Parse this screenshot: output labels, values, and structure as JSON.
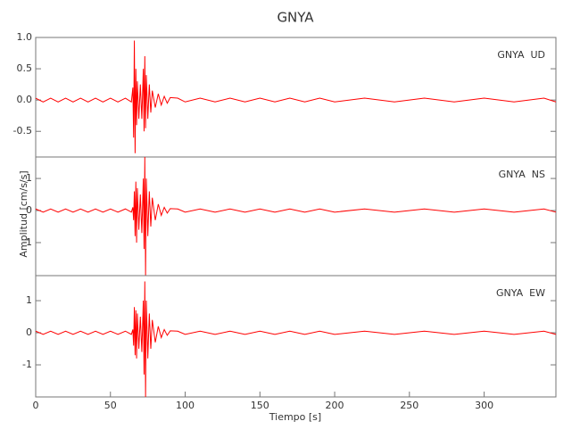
{
  "title": "GNYA",
  "y_label": "Amplitud [cm/s/s]",
  "x_label": "Tiempo [s]",
  "chart_data": [
    {
      "type": "line",
      "label": "GNYA  UD",
      "xlim": [
        0,
        348
      ],
      "ylim": [
        -0.91,
        1.0
      ],
      "yticks": [
        {
          "value": 1,
          "label": "1.0"
        },
        0.5,
        {
          "value": 0,
          "label": "0.0"
        },
        -0.5
      ],
      "x": [
        0,
        5,
        10,
        15,
        20,
        25,
        30,
        35,
        40,
        45,
        50,
        55,
        60,
        64,
        65,
        65.5,
        66,
        66.5,
        67,
        67.5,
        68,
        69,
        70,
        71,
        72,
        72.5,
        73,
        73.5,
        74,
        75,
        76,
        77,
        78,
        80,
        82,
        84,
        86,
        88,
        90,
        95,
        100,
        110,
        120,
        130,
        140,
        150,
        160,
        170,
        180,
        190,
        200,
        220,
        240,
        260,
        280,
        300,
        320,
        340,
        348
      ],
      "series": [
        {
          "color": "#ff0000",
          "values": [
            0.03,
            -0.03,
            0.03,
            -0.03,
            0.03,
            -0.03,
            0.03,
            -0.03,
            0.03,
            -0.03,
            0.03,
            -0.03,
            0.03,
            -0.03,
            0.2,
            -0.6,
            0.95,
            -0.85,
            0.5,
            -0.4,
            0.3,
            -0.3,
            0.25,
            -0.3,
            0.5,
            -0.5,
            0.7,
            -0.45,
            0.4,
            -0.3,
            0.25,
            -0.2,
            0.15,
            -0.12,
            0.1,
            -0.08,
            0.06,
            -0.05,
            0.04,
            0.03,
            -0.03,
            0.03,
            -0.03,
            0.03,
            -0.03,
            0.03,
            -0.03,
            0.03,
            -0.03,
            0.03,
            -0.03,
            0.03,
            -0.03,
            0.03,
            -0.03,
            0.03,
            -0.03,
            0.03,
            -0.03
          ]
        }
      ]
    },
    {
      "type": "line",
      "label": "GNYA  NS",
      "xlim": [
        0,
        348
      ],
      "ylim": [
        -2.03,
        1.67
      ],
      "yticks": [
        1,
        0,
        -1
      ],
      "x": [
        0,
        5,
        10,
        15,
        20,
        25,
        30,
        35,
        40,
        45,
        50,
        55,
        60,
        64,
        65,
        65.5,
        66,
        66.5,
        67,
        67.5,
        68,
        69,
        70,
        71,
        72,
        72.5,
        73,
        73.5,
        74,
        75,
        76,
        77,
        78,
        80,
        82,
        84,
        86,
        88,
        90,
        95,
        100,
        110,
        120,
        130,
        140,
        150,
        160,
        170,
        180,
        190,
        200,
        220,
        240,
        260,
        280,
        300,
        320,
        340,
        348
      ],
      "series": [
        {
          "color": "#ff0000",
          "values": [
            0.05,
            -0.05,
            0.05,
            -0.05,
            0.05,
            -0.05,
            0.05,
            -0.05,
            0.05,
            -0.05,
            0.05,
            -0.05,
            0.05,
            -0.05,
            0.1,
            -0.3,
            0.6,
            -0.8,
            0.9,
            -1.0,
            0.7,
            -0.6,
            0.5,
            -0.7,
            1.0,
            -1.2,
            1.67,
            -2.03,
            1.0,
            -0.8,
            0.6,
            -0.5,
            0.4,
            -0.3,
            0.2,
            -0.15,
            0.1,
            -0.08,
            0.06,
            0.05,
            -0.05,
            0.05,
            -0.05,
            0.05,
            -0.05,
            0.05,
            -0.05,
            0.05,
            -0.05,
            0.05,
            -0.05,
            0.05,
            -0.05,
            0.05,
            -0.05,
            0.05,
            -0.05,
            0.05,
            -0.05
          ]
        }
      ]
    },
    {
      "type": "line",
      "label": "GNYA  EW",
      "xlim": [
        0,
        348
      ],
      "ylim": [
        -2.0,
        1.78
      ],
      "yticks": [
        1,
        0,
        -1
      ],
      "xticks": [
        0,
        50,
        100,
        150,
        200,
        250,
        300
      ],
      "x": [
        0,
        5,
        10,
        15,
        20,
        25,
        30,
        35,
        40,
        45,
        50,
        55,
        60,
        64,
        65,
        65.5,
        66,
        66.5,
        67,
        67.5,
        68,
        69,
        70,
        71,
        72,
        72.5,
        73,
        73.5,
        74,
        75,
        76,
        77,
        78,
        80,
        82,
        84,
        86,
        88,
        90,
        95,
        100,
        110,
        120,
        130,
        140,
        150,
        160,
        170,
        180,
        190,
        200,
        220,
        240,
        260,
        280,
        300,
        320,
        340,
        348
      ],
      "series": [
        {
          "color": "#ff0000",
          "values": [
            0.05,
            -0.05,
            0.05,
            -0.05,
            0.05,
            -0.05,
            0.05,
            -0.05,
            0.05,
            -0.05,
            0.05,
            -0.05,
            0.05,
            -0.05,
            0.1,
            -0.4,
            0.8,
            -0.7,
            0.7,
            -0.8,
            0.6,
            -0.5,
            0.5,
            -0.6,
            1.0,
            -1.3,
            1.6,
            -2.0,
            1.0,
            -0.8,
            0.6,
            -0.5,
            0.4,
            -0.3,
            0.2,
            -0.15,
            0.1,
            -0.08,
            0.06,
            0.05,
            -0.05,
            0.05,
            -0.05,
            0.05,
            -0.05,
            0.05,
            -0.05,
            0.05,
            -0.05,
            0.05,
            -0.05,
            0.05,
            -0.05,
            0.05,
            -0.05,
            0.05,
            -0.05,
            0.05,
            -0.05
          ]
        }
      ]
    }
  ]
}
